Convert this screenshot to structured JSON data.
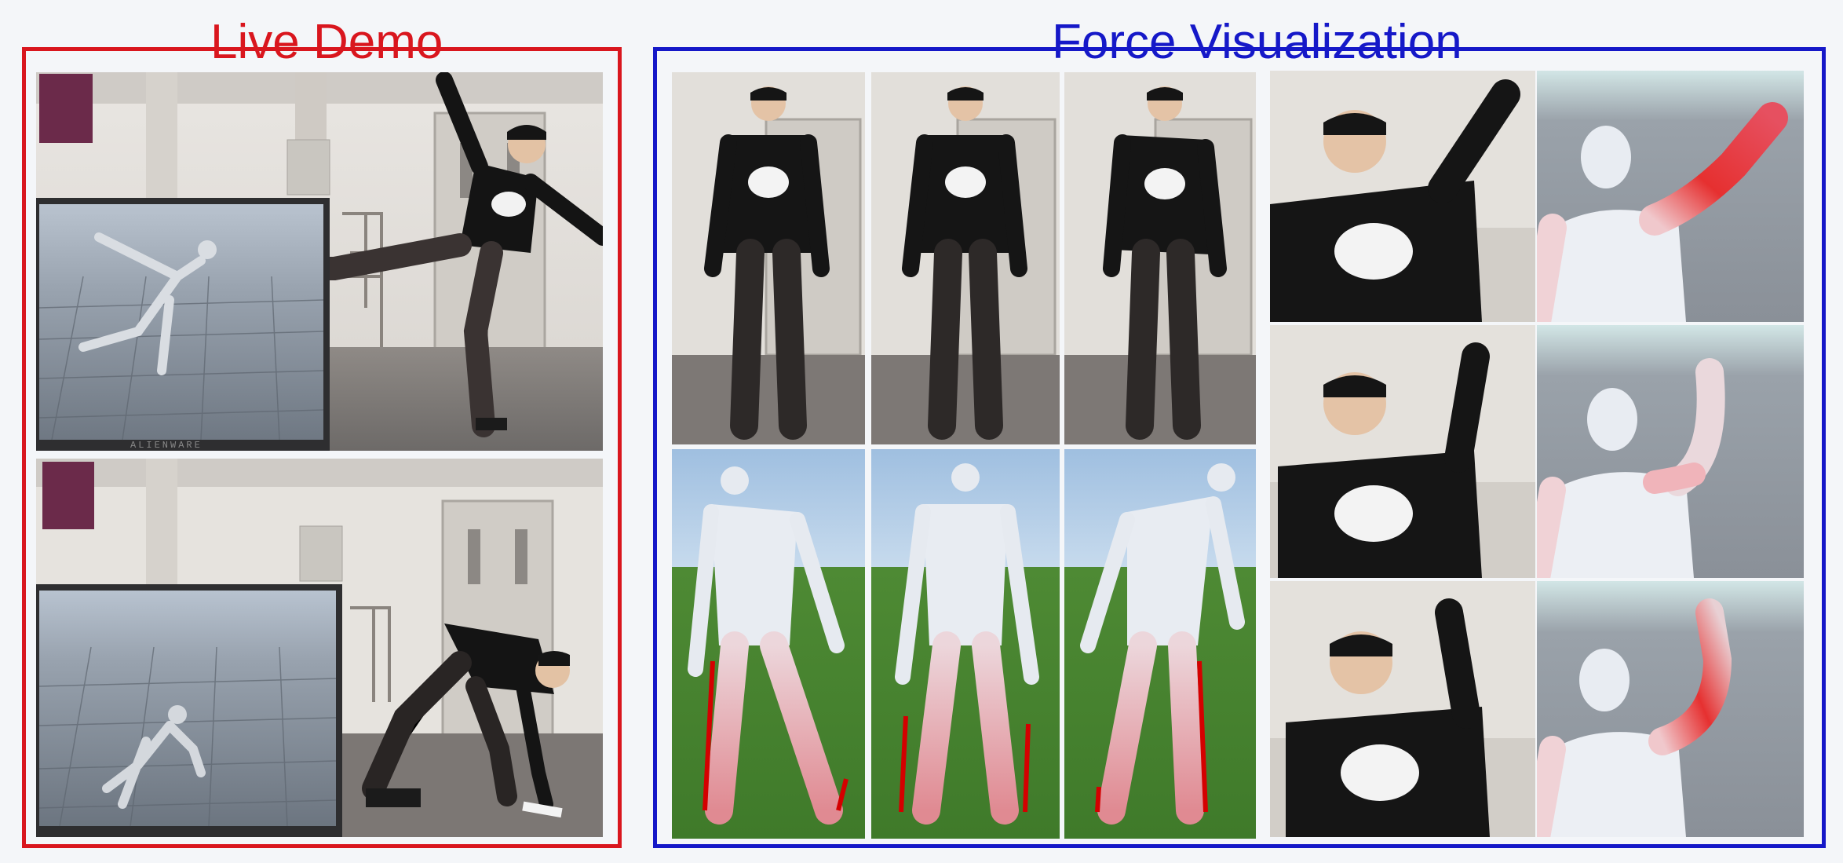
{
  "live_demo": {
    "title": "Live Demo",
    "monitor_brand": "ALIENWARE",
    "colors": {
      "frame": "#d9161e"
    }
  },
  "force_visualization": {
    "title": "Force Visualization",
    "colors": {
      "frame": "#1518c8",
      "force_line": "#d40000",
      "force_highlight": "#e63030"
    }
  }
}
